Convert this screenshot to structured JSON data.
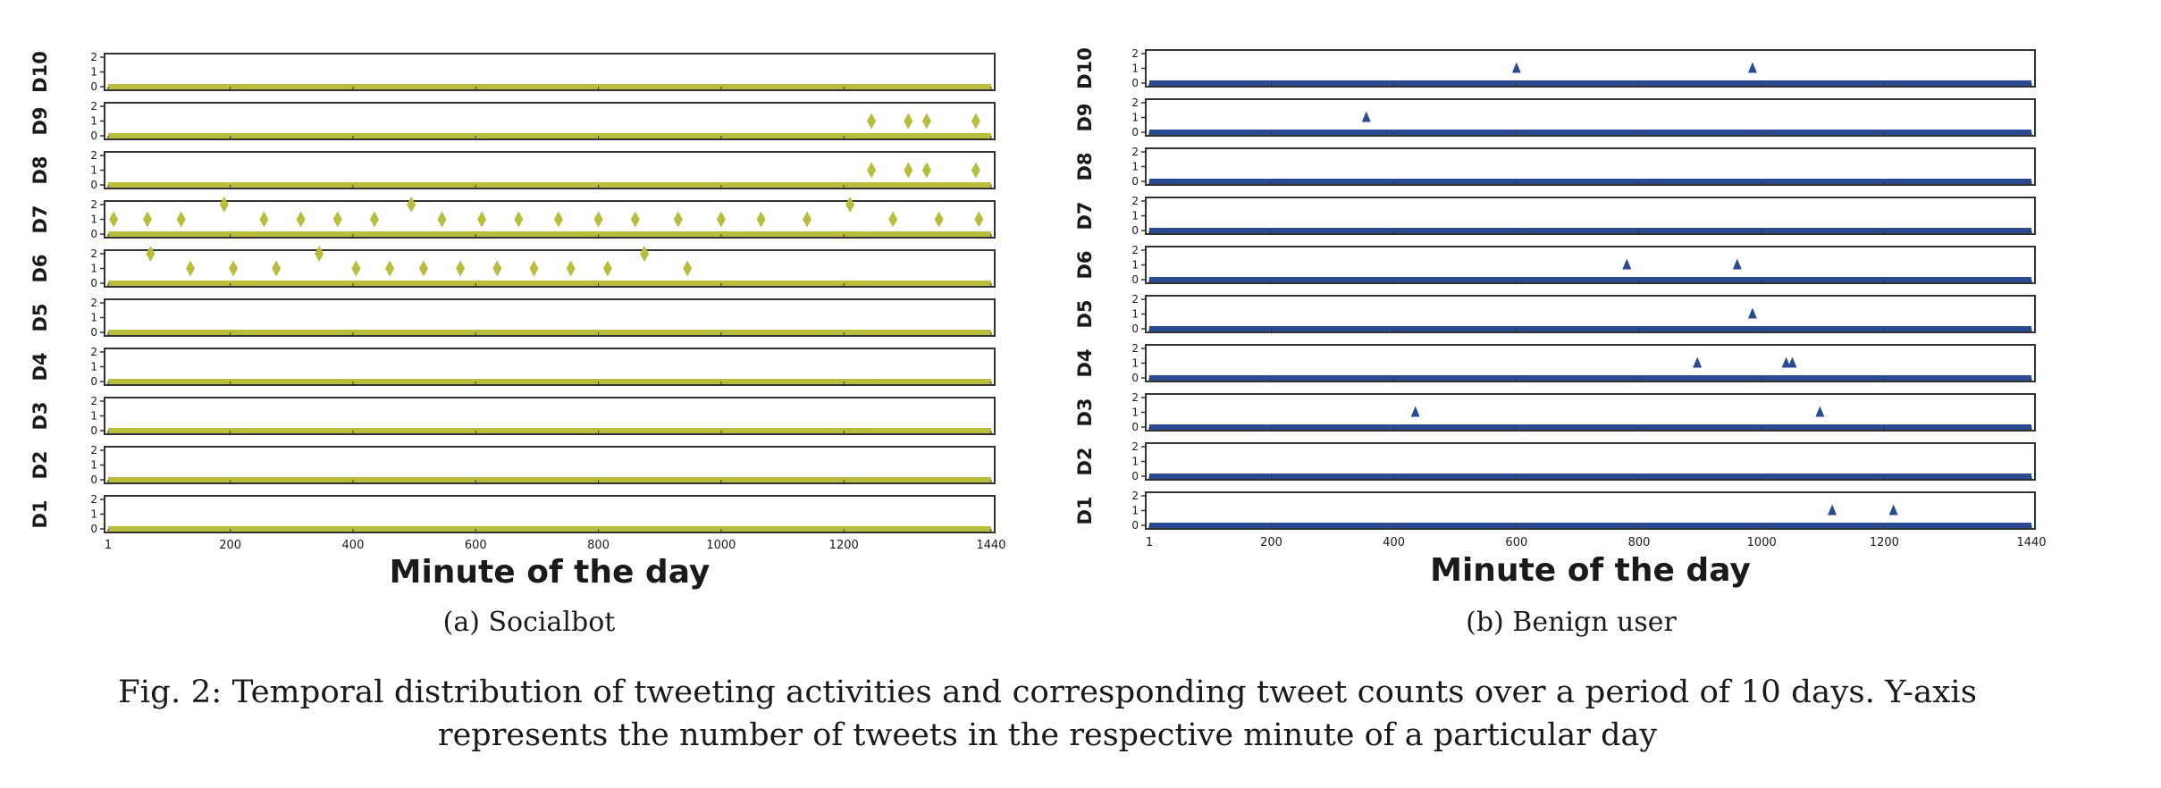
{
  "colors": {
    "socialbot": "#b8bd3c",
    "benign": "#2a4a91",
    "frame": "#333333"
  },
  "caption": {
    "line1": "Fig. 2: Temporal distribution of tweeting activities and corresponding tweet counts over a period of 10 days. Y-axis",
    "line2": "represents the number of tweets in the respective minute of a particular day"
  },
  "chart_data": [
    {
      "type": "scatter",
      "subcaption": "(a) Socialbot",
      "xlabel": "Minute of the day",
      "xlim": [
        1,
        1440
      ],
      "x_ticks": [
        1,
        200,
        400,
        600,
        800,
        1000,
        1200,
        1440
      ],
      "ylim": [
        0,
        2
      ],
      "y_ticks": [
        "0",
        "1",
        "2"
      ],
      "marker": "diamond",
      "color": "#b8bd3c",
      "days": [
        {
          "label": "D10",
          "points": []
        },
        {
          "label": "D9",
          "points": [
            [
              1245,
              1
            ],
            [
              1305,
              1
            ],
            [
              1335,
              1
            ],
            [
              1415,
              1
            ]
          ]
        },
        {
          "label": "D8",
          "points": [
            [
              1245,
              1
            ],
            [
              1305,
              1
            ],
            [
              1335,
              1
            ],
            [
              1415,
              1
            ]
          ]
        },
        {
          "label": "D7",
          "points": [
            [
              10,
              1
            ],
            [
              65,
              1
            ],
            [
              120,
              1
            ],
            [
              190,
              2
            ],
            [
              255,
              1
            ],
            [
              315,
              1
            ],
            [
              375,
              1
            ],
            [
              435,
              1
            ],
            [
              495,
              2
            ],
            [
              545,
              1
            ],
            [
              610,
              1
            ],
            [
              670,
              1
            ],
            [
              735,
              1
            ],
            [
              800,
              1
            ],
            [
              860,
              1
            ],
            [
              930,
              1
            ],
            [
              1000,
              1
            ],
            [
              1065,
              1
            ],
            [
              1140,
              1
            ],
            [
              1210,
              2
            ],
            [
              1280,
              1
            ],
            [
              1355,
              1
            ],
            [
              1420,
              1
            ]
          ]
        },
        {
          "label": "D6",
          "points": [
            [
              70,
              2
            ],
            [
              135,
              1
            ],
            [
              205,
              1
            ],
            [
              275,
              1
            ],
            [
              345,
              2
            ],
            [
              405,
              1
            ],
            [
              460,
              1
            ],
            [
              515,
              1
            ],
            [
              575,
              1
            ],
            [
              635,
              1
            ],
            [
              695,
              1
            ],
            [
              755,
              1
            ],
            [
              815,
              1
            ],
            [
              875,
              2
            ],
            [
              945,
              1
            ]
          ]
        },
        {
          "label": "D5",
          "points": []
        },
        {
          "label": "D4",
          "points": []
        },
        {
          "label": "D3",
          "points": []
        },
        {
          "label": "D2",
          "points": []
        },
        {
          "label": "D1",
          "points": []
        }
      ]
    },
    {
      "type": "scatter",
      "subcaption": "(b) Benign user",
      "xlabel": "Minute of the day",
      "xlim": [
        1,
        1440
      ],
      "x_ticks": [
        1,
        200,
        400,
        600,
        800,
        1000,
        1200,
        1440
      ],
      "ylim": [
        0,
        2
      ],
      "y_ticks": [
        "0",
        "1",
        "2"
      ],
      "marker": "triangle",
      "color": "#2a4a91",
      "days": [
        {
          "label": "D10",
          "points": [
            [
              600,
              1
            ],
            [
              985,
              1
            ]
          ]
        },
        {
          "label": "D9",
          "points": [
            [
              355,
              1
            ]
          ]
        },
        {
          "label": "D8",
          "points": []
        },
        {
          "label": "D7",
          "points": []
        },
        {
          "label": "D6",
          "points": [
            [
              780,
              1
            ],
            [
              960,
              1
            ]
          ]
        },
        {
          "label": "D5",
          "points": [
            [
              985,
              1
            ]
          ]
        },
        {
          "label": "D4",
          "points": [
            [
              895,
              1
            ],
            [
              1040,
              1
            ],
            [
              1050,
              1
            ]
          ]
        },
        {
          "label": "D3",
          "points": [
            [
              435,
              1
            ],
            [
              1095,
              1
            ]
          ]
        },
        {
          "label": "D2",
          "points": []
        },
        {
          "label": "D1",
          "points": [
            [
              1115,
              1
            ],
            [
              1215,
              1
            ]
          ]
        }
      ]
    }
  ]
}
